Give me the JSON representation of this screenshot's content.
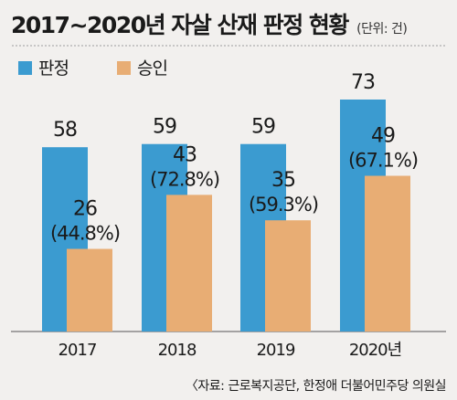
{
  "header": {
    "title": "2017~2020년 자살 산재 판정 현황",
    "unit": "(단위: 건)"
  },
  "source": "〈자료: 근로복지공단, 한정애 더불어민주당 의원실",
  "colors": {
    "background": "#f2f0ee",
    "판정": "#3b9bd0",
    "승인": "#e8ad74"
  },
  "chart_data": {
    "type": "bar",
    "title": "2017~2020년 자살 산재 판정 현황",
    "unit": "(단위: 건)",
    "categories": [
      "2017",
      "2018",
      "2019",
      "2020년"
    ],
    "series": [
      {
        "name": "판정",
        "values": [
          58,
          59,
          59,
          73
        ],
        "labels": [
          "58",
          "59",
          "59",
          "73"
        ]
      },
      {
        "name": "승인",
        "values": [
          26,
          43,
          35,
          49
        ],
        "labels": [
          "26",
          "43",
          "35",
          "49"
        ],
        "rates": [
          "(44.8%)",
          "(72.8%)",
          "(59.3%)",
          "(67.1%)"
        ]
      }
    ],
    "ylim": [
      0,
      73
    ],
    "grid": false,
    "legend": "top-left"
  }
}
